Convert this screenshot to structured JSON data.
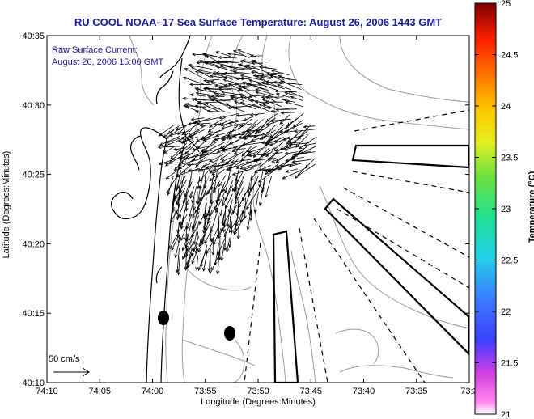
{
  "title": "RU COOL  NOAA–17  Sea Surface Temperature:  August 26, 2006 1443 GMT",
  "annotation_line1": "Raw Surface Current:",
  "annotation_line2": "August 26, 2006 15:00 GMT",
  "x_axis_label": "Longitude (Degrees:Minutes)",
  "y_axis_label": "Latitude (Degrees:Minutes)",
  "colorbar_label": "Temperature (°C)",
  "scale_label": "50 cm/s",
  "x_ticks": [
    "74:10",
    "74:05",
    "74:00",
    "73:55",
    "73:50",
    "73:45",
    "73:40",
    "73:35",
    "73:3"
  ],
  "y_ticks": [
    "40:35",
    "40:30",
    "40:25",
    "40:20",
    "40:15",
    "40:10"
  ],
  "colorbar_ticks": [
    "25",
    "24.5",
    "24",
    "23.5",
    "23",
    "22.5",
    "22",
    "21.5",
    "21"
  ],
  "colorbar_range": [
    21,
    25
  ],
  "colors": {
    "title": "#1a1aa0",
    "axes": "#000000",
    "contour": "#9a9a9a"
  }
}
